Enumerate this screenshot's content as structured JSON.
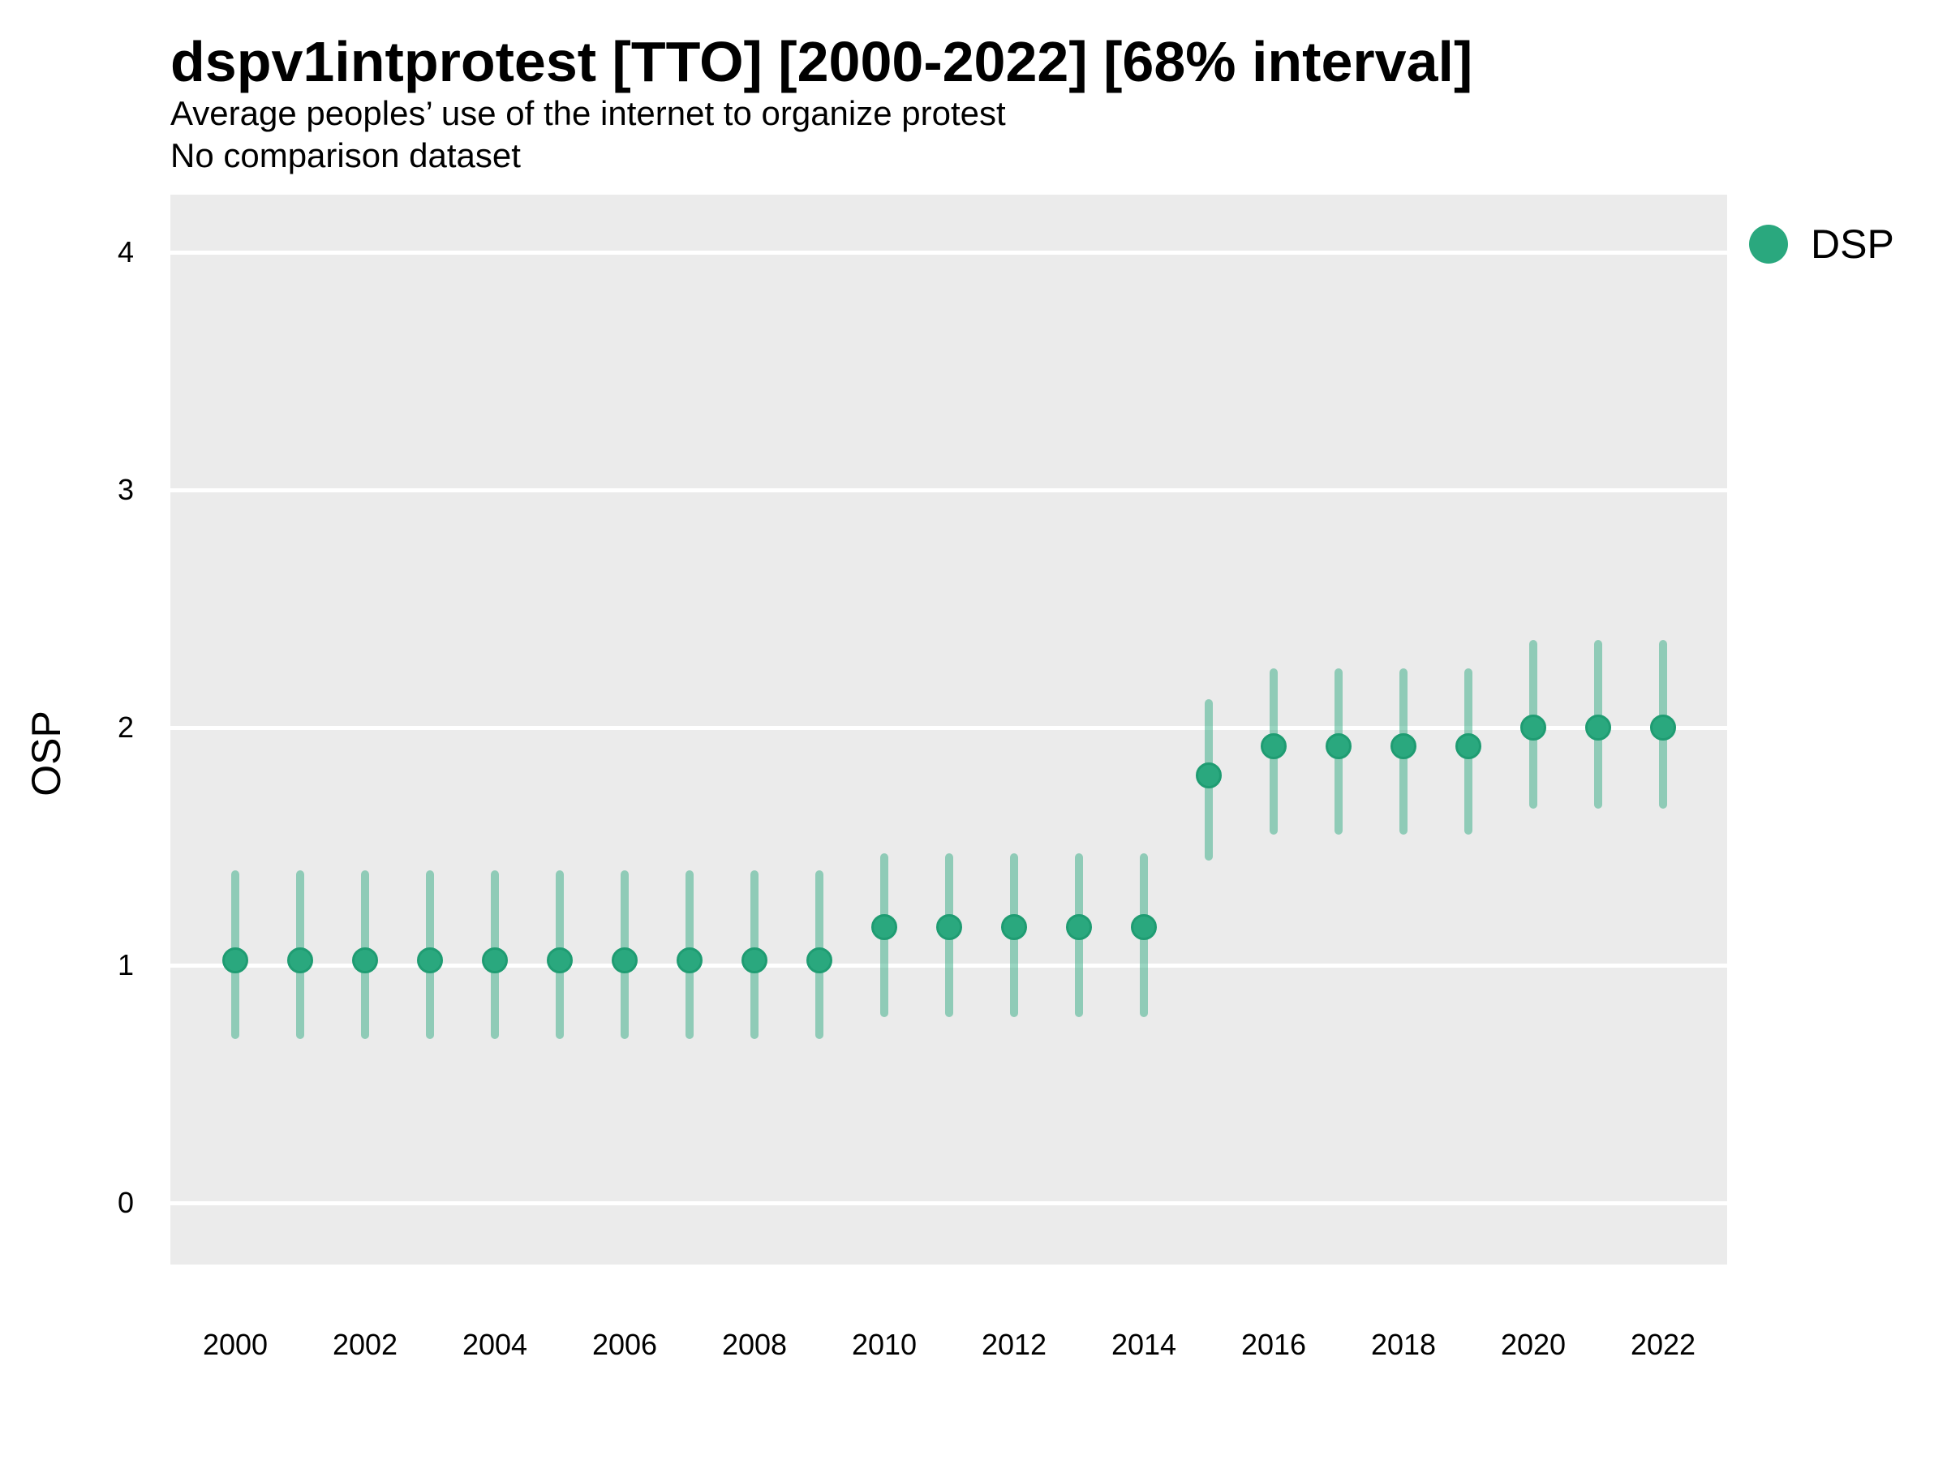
{
  "header": {
    "title": "dspv1intprotest [TTO] [2000-2022] [68% interval]",
    "subtitle": "Average peoples’ use of the internet to organize protest",
    "note": "No comparison dataset"
  },
  "y_axis_title": "OSP",
  "legend": {
    "position": "right-top",
    "items": [
      {
        "label": "DSP",
        "marker": "circle-icon",
        "color": "#2aa87e"
      }
    ]
  },
  "colors": {
    "panel_background": "#ebebeb",
    "gridline": "#ffffff",
    "point_fill": "#2aa87e",
    "point_stroke": "#1f9c72",
    "interval_bar": "rgba(42,168,126,0.48)",
    "text": "#000000"
  },
  "chart_data": {
    "type": "pointrange",
    "title": "dspv1intprotest [TTO] [2000-2022] [68% interval]",
    "subtitle": "Average peoples’ use of the internet to organize protest",
    "note": "No comparison dataset",
    "interval_level": "68%",
    "xlabel": "",
    "ylabel": "OSP",
    "grid": "horizontal-major-only",
    "legend_position": "right-top",
    "xlim": [
      1999,
      2023
    ],
    "ylim": [
      -0.26,
      4.24
    ],
    "x_ticks": [
      2000,
      2002,
      2004,
      2006,
      2008,
      2010,
      2012,
      2014,
      2016,
      2018,
      2020,
      2022
    ],
    "y_ticks": [
      0,
      1,
      2,
      3,
      4
    ],
    "x": [
      2000,
      2001,
      2002,
      2003,
      2004,
      2005,
      2006,
      2007,
      2008,
      2009,
      2010,
      2011,
      2012,
      2013,
      2014,
      2015,
      2016,
      2017,
      2018,
      2019,
      2020,
      2021,
      2022
    ],
    "series": [
      {
        "name": "DSP",
        "mean": [
          1.02,
          1.02,
          1.02,
          1.02,
          1.02,
          1.02,
          1.02,
          1.02,
          1.02,
          1.02,
          1.16,
          1.16,
          1.16,
          1.16,
          1.16,
          1.8,
          1.92,
          1.92,
          1.92,
          1.92,
          2.0,
          2.0,
          2.0
        ],
        "lower": [
          0.69,
          0.69,
          0.69,
          0.69,
          0.69,
          0.69,
          0.69,
          0.69,
          0.69,
          0.69,
          0.78,
          0.78,
          0.78,
          0.78,
          0.78,
          1.44,
          1.55,
          1.55,
          1.55,
          1.55,
          1.66,
          1.66,
          1.66
        ],
        "upper": [
          1.4,
          1.4,
          1.4,
          1.4,
          1.4,
          1.4,
          1.4,
          1.4,
          1.4,
          1.4,
          1.47,
          1.47,
          1.47,
          1.47,
          1.47,
          2.12,
          2.25,
          2.25,
          2.25,
          2.25,
          2.37,
          2.37,
          2.37
        ]
      }
    ]
  }
}
